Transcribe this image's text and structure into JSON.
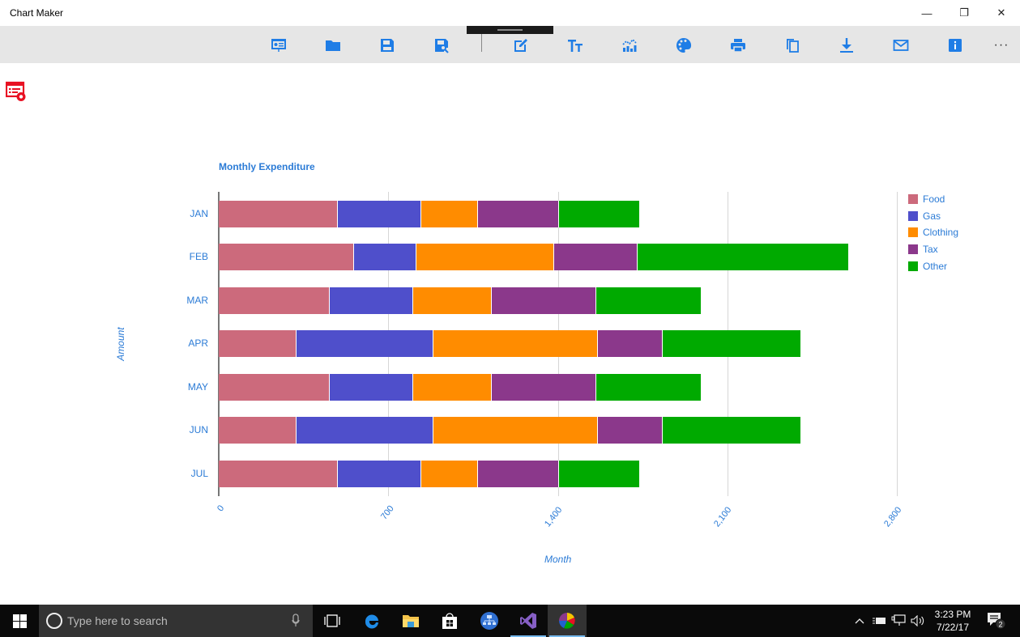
{
  "window": {
    "title": "Chart Maker",
    "controls": {
      "minimize": "—",
      "restore": "❐",
      "close": "✕"
    }
  },
  "toolbar": {
    "buttons": [
      {
        "name": "presentation-view",
        "icon": "presentation-icon"
      },
      {
        "name": "open",
        "icon": "folder-icon"
      },
      {
        "name": "save",
        "icon": "save-icon"
      },
      {
        "name": "save-as",
        "icon": "save-search-icon"
      },
      {
        "name": "edit-data",
        "icon": "edit-icon"
      },
      {
        "name": "text-format",
        "icon": "text-size-icon"
      },
      {
        "name": "chart-type",
        "icon": "chart-icon"
      },
      {
        "name": "color-theme",
        "icon": "palette-icon"
      },
      {
        "name": "print",
        "icon": "printer-icon"
      },
      {
        "name": "copy",
        "icon": "copy-icon"
      },
      {
        "name": "download",
        "icon": "download-icon"
      },
      {
        "name": "email",
        "icon": "mail-icon"
      },
      {
        "name": "info",
        "icon": "info-icon"
      }
    ],
    "more": "···"
  },
  "side_icon": {
    "name": "data-preview",
    "icon": "data-view-icon",
    "color": "#e81123"
  },
  "accent_color": "#1f7de6",
  "chart_data": {
    "type": "bar",
    "orientation": "horizontal",
    "stacked": true,
    "title": "Monthly Expenditure",
    "xlabel": "Month",
    "ylabel": "Amount",
    "categories": [
      "JAN",
      "FEB",
      "MAR",
      "APR",
      "MAY",
      "JUN",
      "JUL"
    ],
    "series": [
      {
        "name": "Food",
        "color": "#cc6a7c",
        "values": [
          490,
          558,
          457,
          321,
          457,
          321,
          490
        ]
      },
      {
        "name": "Gas",
        "color": "#4f4fcb",
        "values": [
          345,
          257,
          344,
          566,
          344,
          566,
          345
        ]
      },
      {
        "name": "Clothing",
        "color": "#ff8c00",
        "values": [
          233,
          568,
          324,
          678,
          324,
          678,
          233
        ]
      },
      {
        "name": "Tax",
        "color": "#8b388b",
        "values": [
          334,
          344,
          432,
          266,
          432,
          266,
          334
        ]
      },
      {
        "name": "Other",
        "color": "#00aa00",
        "values": [
          336,
          873,
          434,
          573,
          434,
          573,
          336
        ]
      }
    ],
    "value_axis": {
      "min": 0,
      "max": 2800,
      "ticks": [
        "0",
        "700",
        "1,400",
        "2,100",
        "2,800"
      ]
    },
    "grid": true,
    "legend_position": "right"
  },
  "taskbar": {
    "search_placeholder": "Type here to search",
    "apps": [
      "task-view",
      "edge",
      "file-explorer",
      "store",
      "network-app",
      "visual-studio",
      "chart-maker"
    ],
    "time": "3:23 PM",
    "date": "7/22/17",
    "notification_count": "2"
  }
}
